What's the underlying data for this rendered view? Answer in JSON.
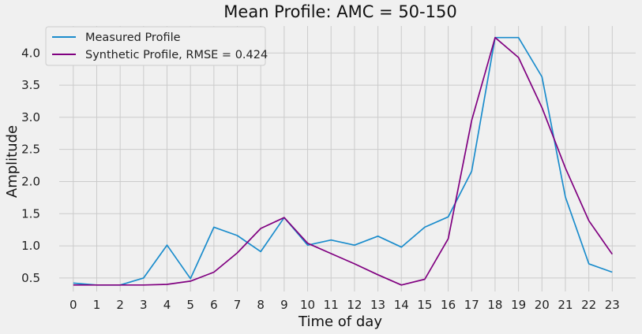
{
  "chart_data": {
    "type": "line",
    "title": "Mean Profile: AMC = 50-150",
    "xlabel": "Time of day",
    "ylabel": "Amplitude",
    "x": [
      0,
      1,
      2,
      3,
      4,
      5,
      6,
      7,
      8,
      9,
      10,
      11,
      12,
      13,
      14,
      15,
      16,
      17,
      18,
      19,
      20,
      21,
      22,
      23
    ],
    "xlim": [
      -0.6,
      24.0
    ],
    "ylim": [
      0.29,
      4.42
    ],
    "yticks": [
      0.5,
      1.0,
      1.5,
      2.0,
      2.5,
      3.0,
      3.5,
      4.0
    ],
    "ytick_labels": [
      "0.5",
      "1.0",
      "1.5",
      "2.0",
      "2.5",
      "3.0",
      "3.5",
      "4.0"
    ],
    "grid": true,
    "legend_position": "top-left",
    "series": [
      {
        "name": "Measured Profile",
        "color": "#1a8ccc",
        "values": [
          0.42,
          0.39,
          0.39,
          0.5,
          1.01,
          0.49,
          1.29,
          1.16,
          0.91,
          1.44,
          1.01,
          1.09,
          1.01,
          1.15,
          0.98,
          1.29,
          1.45,
          2.16,
          4.24,
          4.24,
          3.63,
          1.76,
          0.72,
          0.59
        ]
      },
      {
        "name": "Synthetic Profile, RMSE = 0.424",
        "color": "#800080",
        "values": [
          0.39,
          0.39,
          0.39,
          0.39,
          0.4,
          0.45,
          0.59,
          0.89,
          1.27,
          1.44,
          1.04,
          0.88,
          0.72,
          0.55,
          0.39,
          0.48,
          1.11,
          2.95,
          4.24,
          3.93,
          3.15,
          2.21,
          1.39,
          0.87
        ]
      }
    ]
  }
}
